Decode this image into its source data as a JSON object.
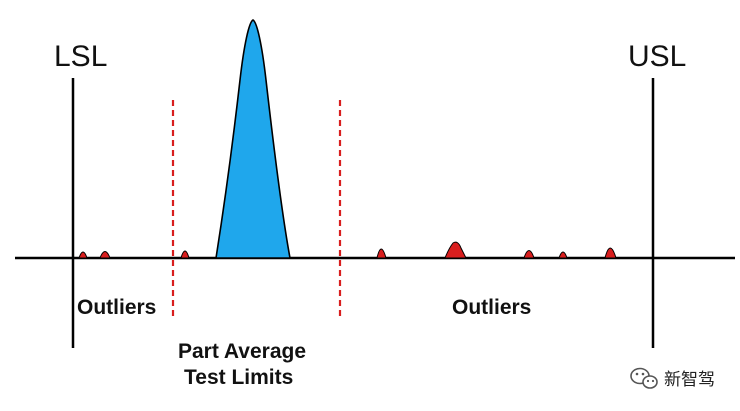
{
  "labels": {
    "lsl": "LSL",
    "usl": "USL",
    "outliers_left": "Outliers",
    "outliers_right": "Outliers",
    "pat_line1": "Part Average",
    "pat_line2": "Test Limits"
  },
  "watermark": {
    "text": "新智驾",
    "icon": "wechat-icon"
  },
  "colors": {
    "main_distribution": "#1fa7ec",
    "outlier": "#d81e1e",
    "pat_limit_line": "#d81e1e",
    "spec_limit_line": "#000000"
  }
}
